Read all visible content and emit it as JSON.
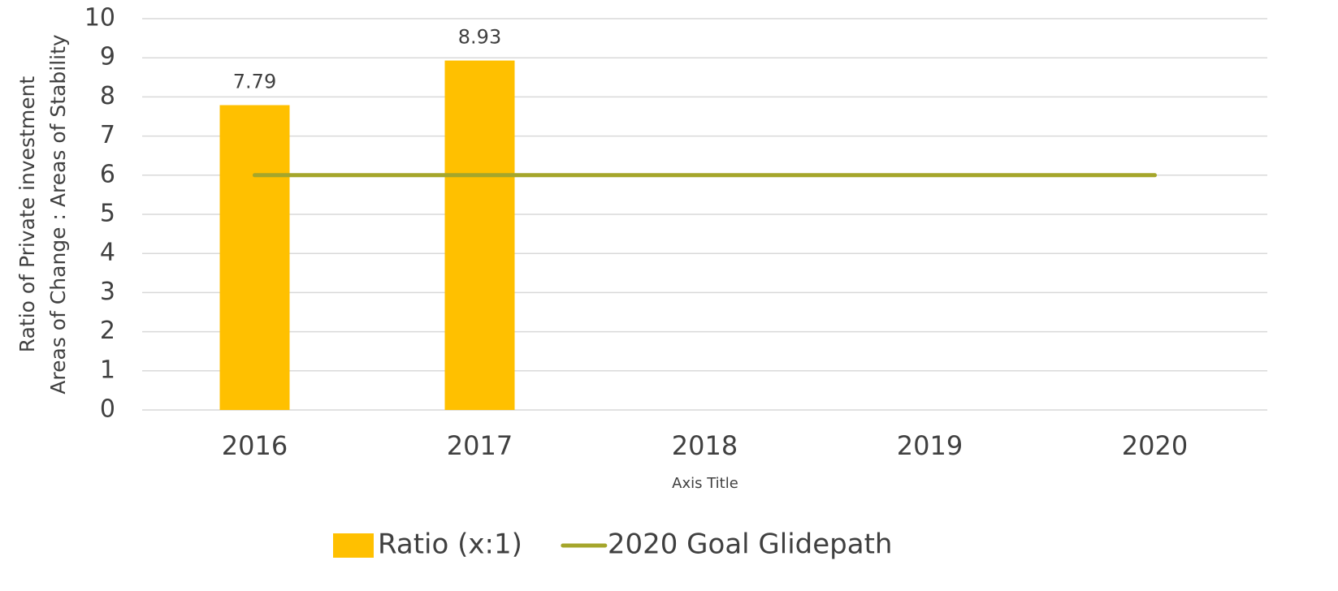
{
  "chart_data": {
    "type": "bar",
    "y_label": [
      "Ratio of Private investment",
      "Areas of Change : Areas of Stability"
    ],
    "x_label": "Axis Title",
    "categories": [
      "2016",
      "2017",
      "2018",
      "2019",
      "2020"
    ],
    "series": [
      {
        "name": "Ratio (x:1)",
        "type": "bar",
        "color": "#ffc000",
        "values": [
          7.79,
          8.93,
          null,
          null,
          null
        ]
      },
      {
        "name": "2020 Goal Glidepath",
        "type": "line",
        "color": "#a5a62b",
        "values": [
          6,
          6,
          6,
          6,
          6
        ]
      }
    ],
    "ylim": [
      0,
      10
    ],
    "yticks": [
      0,
      1,
      2,
      3,
      4,
      5,
      6,
      7,
      8,
      9,
      10
    ],
    "grid": true,
    "legend": "bottom"
  }
}
